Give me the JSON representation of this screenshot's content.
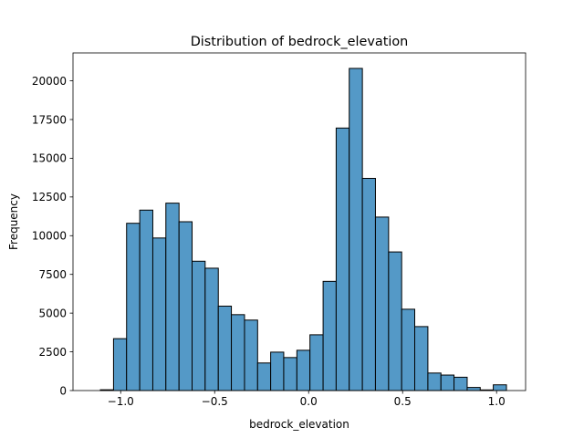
{
  "chart_data": {
    "type": "histogram",
    "title": "Distribution of bedrock_elevation",
    "xlabel": "bedrock_elevation",
    "ylabel": "Frequency",
    "xlim": [
      -1.2537,
      1.1544
    ],
    "ylim": [
      0,
      21800
    ],
    "x_ticks": [
      -1.0,
      -0.5,
      0.0,
      0.5,
      1.0
    ],
    "x_tick_labels": [
      "−1.0",
      "−0.5",
      "0.0",
      "0.5",
      "1.0"
    ],
    "y_ticks": [
      0,
      2500,
      5000,
      7500,
      10000,
      12500,
      15000,
      17500,
      20000
    ],
    "y_tick_labels": [
      "0",
      "2500",
      "5000",
      "7500",
      "10000",
      "12500",
      "15000",
      "17500",
      "20000"
    ],
    "bar_color": "#5499c7",
    "edge_color": "#000000",
    "bins": [
      {
        "x0": -1.1081,
        "x1": -1.0381,
        "count": 50
      },
      {
        "x0": -1.0381,
        "x1": -0.9686,
        "count": 3350
      },
      {
        "x0": -0.9686,
        "x1": -0.8986,
        "count": 10800
      },
      {
        "x0": -0.8986,
        "x1": -0.8291,
        "count": 11650
      },
      {
        "x0": -0.8291,
        "x1": -0.7596,
        "count": 9850
      },
      {
        "x0": -0.7596,
        "x1": -0.6896,
        "count": 12100
      },
      {
        "x0": -0.6896,
        "x1": -0.6201,
        "count": 10900
      },
      {
        "x0": -0.6201,
        "x1": -0.5506,
        "count": 8350
      },
      {
        "x0": -0.5506,
        "x1": -0.4806,
        "count": 7900
      },
      {
        "x0": -0.4806,
        "x1": -0.4111,
        "count": 5450
      },
      {
        "x0": -0.4111,
        "x1": -0.3411,
        "count": 4900
      },
      {
        "x0": -0.3411,
        "x1": -0.2715,
        "count": 4550
      },
      {
        "x0": -0.2715,
        "x1": -0.202,
        "count": 1780
      },
      {
        "x0": -0.202,
        "x1": -0.1325,
        "count": 2480
      },
      {
        "x0": -0.1325,
        "x1": -0.0625,
        "count": 2130
      },
      {
        "x0": -0.0625,
        "x1": 0.007,
        "count": 2600
      },
      {
        "x0": 0.007,
        "x1": 0.077,
        "count": 3600
      },
      {
        "x0": 0.077,
        "x1": 0.1465,
        "count": 7050
      },
      {
        "x0": 0.1465,
        "x1": 0.216,
        "count": 16950
      },
      {
        "x0": 0.216,
        "x1": 0.286,
        "count": 20800
      },
      {
        "x0": 0.286,
        "x1": 0.3555,
        "count": 13700
      },
      {
        "x0": 0.3555,
        "x1": 0.4255,
        "count": 11200
      },
      {
        "x0": 0.4255,
        "x1": 0.495,
        "count": 8950
      },
      {
        "x0": 0.495,
        "x1": 0.5645,
        "count": 5250
      },
      {
        "x0": 0.5645,
        "x1": 0.6345,
        "count": 4130
      },
      {
        "x0": 0.6345,
        "x1": 0.704,
        "count": 1130
      },
      {
        "x0": 0.704,
        "x1": 0.7735,
        "count": 1000
      },
      {
        "x0": 0.7735,
        "x1": 0.8435,
        "count": 860
      },
      {
        "x0": 0.8435,
        "x1": 0.913,
        "count": 200
      },
      {
        "x0": 0.913,
        "x1": 0.9825,
        "count": 40
      },
      {
        "x0": 0.9825,
        "x1": 1.0525,
        "count": 370
      }
    ]
  }
}
